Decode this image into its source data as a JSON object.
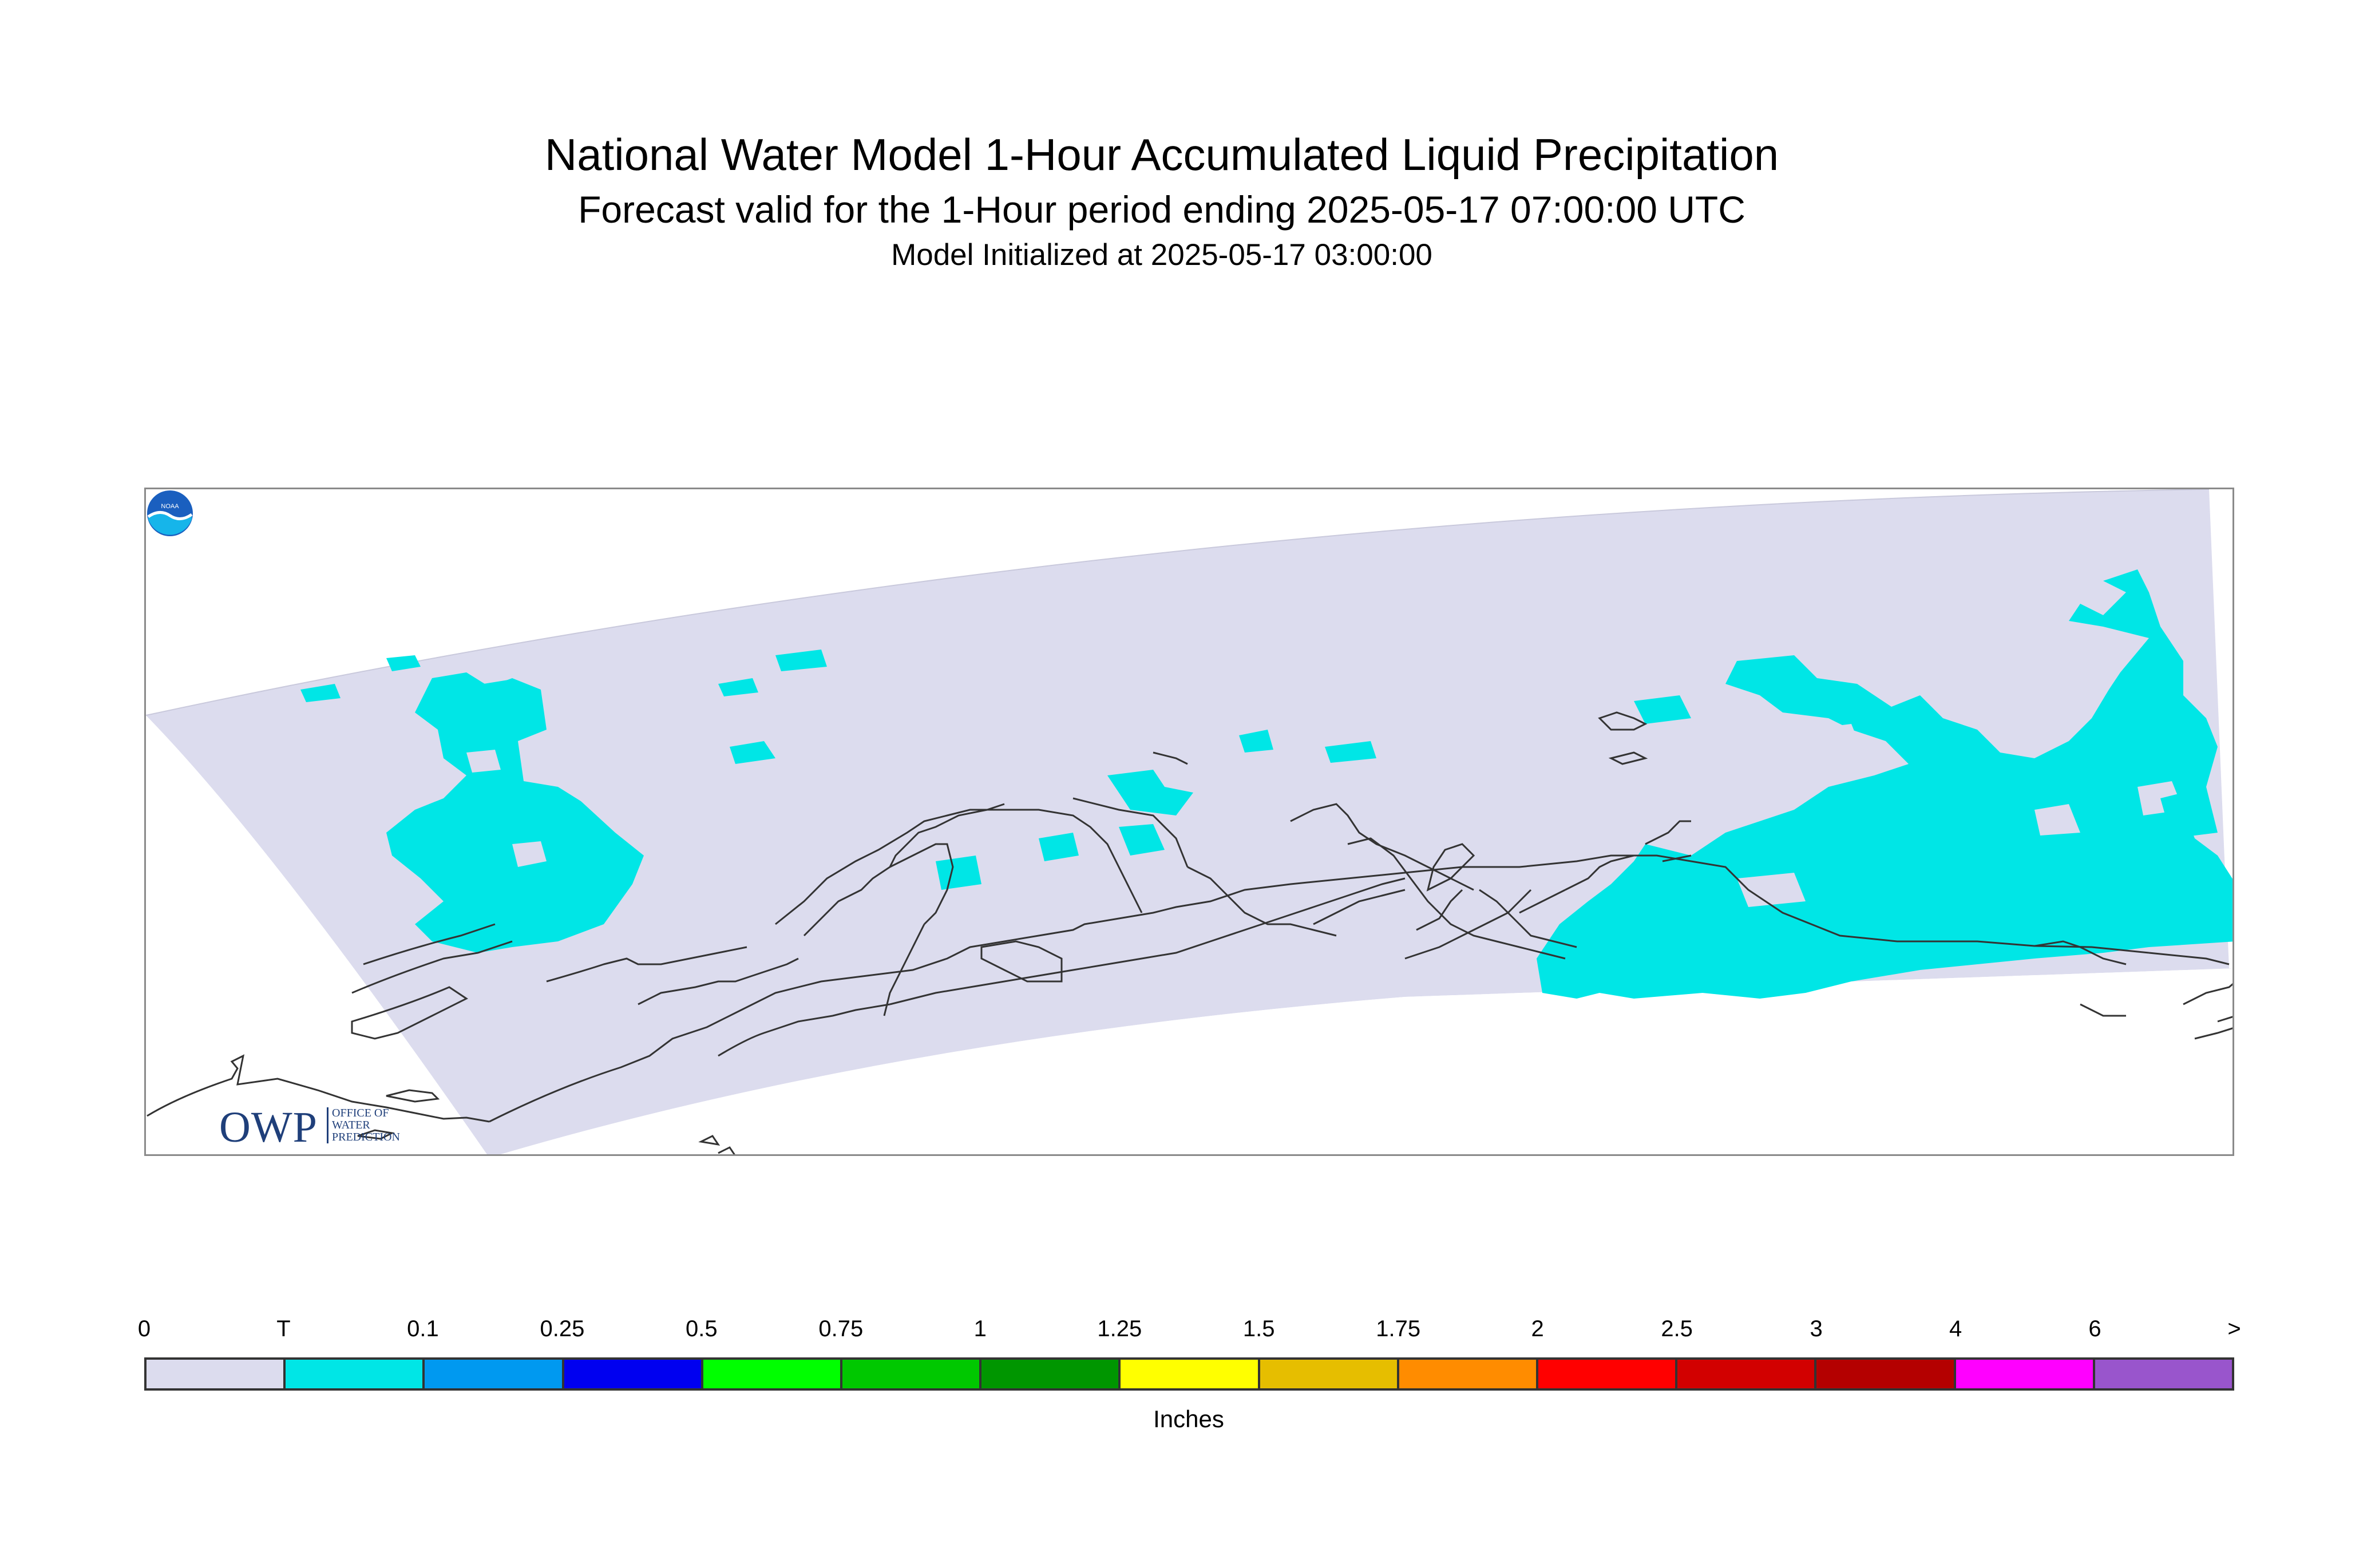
{
  "header": {
    "title": "National Water Model 1-Hour Accumulated Liquid Precipitation",
    "subtitle": "Forecast valid for the 1-Hour period ending 2025-05-17 07:00:00 UTC",
    "init": "Model Initialized at 2025-05-17 03:00:00"
  },
  "logos": {
    "owp_big": "OWP",
    "owp_line1": "OFFICE OF",
    "owp_line2": "WATER",
    "owp_line3": "PREDICTION",
    "noaa": "NOAA"
  },
  "colors": {
    "domain_fill": "#dcdcee",
    "precip_fill": "#00e6e6",
    "coastline": "#333333",
    "frame": "#8a8a8a"
  },
  "legend": {
    "units": "Inches",
    "labels": [
      "0",
      "T",
      "0.1",
      "0.25",
      "0.5",
      "0.75",
      "1",
      "1.25",
      "1.5",
      "1.75",
      "2",
      "2.5",
      "3",
      "4",
      "6",
      ">"
    ],
    "colors": [
      "#dcdcee",
      "#00e6e6",
      "#0099f0",
      "#0000f0",
      "#00ff00",
      "#00c800",
      "#009600",
      "#ffff00",
      "#e6be00",
      "#ff8c00",
      "#ff0000",
      "#d20000",
      "#b40000",
      "#ff00ff",
      "#9955cc"
    ]
  }
}
